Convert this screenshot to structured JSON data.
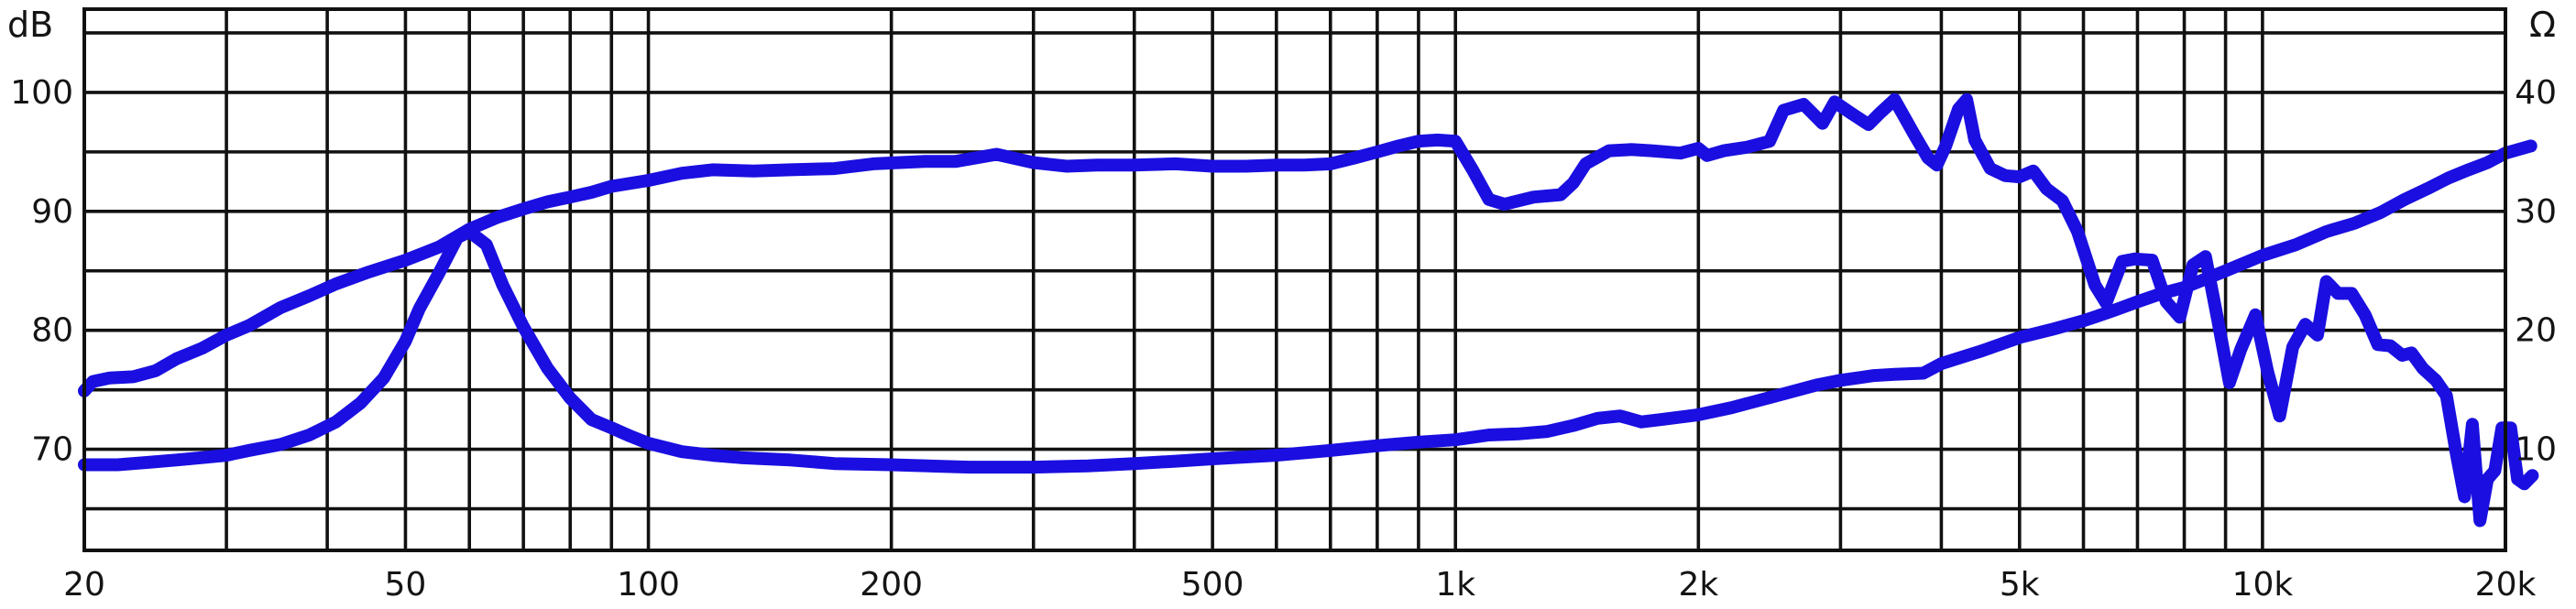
{
  "chart_data": {
    "type": "line",
    "x_scale": "log",
    "xlim": [
      20,
      20000
    ],
    "ylim_left": [
      61.5,
      107
    ],
    "ylim_right": [
      1.5,
      47
    ],
    "y_left_unit": "dB",
    "y_right_unit": "Ω",
    "grid": true,
    "x_ticks": [
      {
        "value": 20,
        "label": "20"
      },
      {
        "value": 50,
        "label": "50"
      },
      {
        "value": 100,
        "label": "100"
      },
      {
        "value": 200,
        "label": "200"
      },
      {
        "value": 500,
        "label": "500"
      },
      {
        "value": 1000,
        "label": "1k"
      },
      {
        "value": 2000,
        "label": "2k"
      },
      {
        "value": 5000,
        "label": "5k"
      },
      {
        "value": 10000,
        "label": "10k"
      },
      {
        "value": 20000,
        "label": "20k"
      }
    ],
    "y_left_ticks": [
      {
        "value": 100,
        "label": "100"
      },
      {
        "value": 90,
        "label": "90"
      },
      {
        "value": 80,
        "label": "80"
      },
      {
        "value": 70,
        "label": "70"
      }
    ],
    "y_right_ticks": [
      {
        "value": 40,
        "label": "40"
      },
      {
        "value": 30,
        "label": "30"
      },
      {
        "value": 20,
        "label": "20"
      },
      {
        "value": 10,
        "label": "10"
      }
    ],
    "series": [
      {
        "axis": "left",
        "color": "#1a0fe0",
        "points": [
          [
            20,
            74.9
          ],
          [
            20.5,
            75.7
          ],
          [
            21.5,
            76
          ],
          [
            23,
            76.1
          ],
          [
            24.5,
            76.6
          ],
          [
            26,
            77.6
          ],
          [
            28,
            78.5
          ],
          [
            30,
            79.6
          ],
          [
            32,
            80.4
          ],
          [
            35,
            81.9
          ],
          [
            38,
            82.9
          ],
          [
            41,
            83.9
          ],
          [
            45,
            84.9
          ],
          [
            50,
            85.9
          ],
          [
            55,
            87
          ],
          [
            60,
            88.5
          ],
          [
            65,
            89.5
          ],
          [
            70,
            90.2
          ],
          [
            75,
            90.8
          ],
          [
            80,
            91.2
          ],
          [
            85,
            91.6
          ],
          [
            90,
            92.1
          ],
          [
            100,
            92.6
          ],
          [
            110,
            93.2
          ],
          [
            120,
            93.5
          ],
          [
            135,
            93.4
          ],
          [
            150,
            93.5
          ],
          [
            170,
            93.6
          ],
          [
            190,
            94
          ],
          [
            220,
            94.2
          ],
          [
            240,
            94.2
          ],
          [
            270,
            94.8
          ],
          [
            300,
            94.1
          ],
          [
            330,
            93.8
          ],
          [
            360,
            93.9
          ],
          [
            400,
            93.9
          ],
          [
            450,
            94
          ],
          [
            500,
            93.8
          ],
          [
            550,
            93.8
          ],
          [
            600,
            93.9
          ],
          [
            650,
            93.9
          ],
          [
            700,
            94
          ],
          [
            750,
            94.5
          ],
          [
            800,
            95
          ],
          [
            850,
            95.5
          ],
          [
            900,
            95.9
          ],
          [
            950,
            96
          ],
          [
            1000,
            95.9
          ],
          [
            1050,
            93.5
          ],
          [
            1100,
            91
          ],
          [
            1150,
            90.6
          ],
          [
            1250,
            91.2
          ],
          [
            1350,
            91.4
          ],
          [
            1400,
            92.4
          ],
          [
            1450,
            94
          ],
          [
            1550,
            95.1
          ],
          [
            1650,
            95.2
          ],
          [
            1750,
            95.1
          ],
          [
            1900,
            94.9
          ],
          [
            2000,
            95.3
          ],
          [
            2050,
            94.7
          ],
          [
            2150,
            95.1
          ],
          [
            2300,
            95.4
          ],
          [
            2450,
            95.9
          ],
          [
            2550,
            98.5
          ],
          [
            2700,
            99
          ],
          [
            2850,
            97.4
          ],
          [
            2950,
            99.2
          ],
          [
            3100,
            98.2
          ],
          [
            3250,
            97.3
          ],
          [
            3350,
            98.2
          ],
          [
            3500,
            99.4
          ],
          [
            3700,
            96.5
          ],
          [
            3850,
            94.5
          ],
          [
            3950,
            93.9
          ],
          [
            4050,
            95.5
          ],
          [
            4200,
            98.6
          ],
          [
            4300,
            99.4
          ],
          [
            4400,
            96
          ],
          [
            4600,
            93.6
          ],
          [
            4800,
            93
          ],
          [
            5000,
            92.9
          ],
          [
            5200,
            93.4
          ],
          [
            5400,
            91.9
          ],
          [
            5650,
            90.9
          ],
          [
            5900,
            88.3
          ],
          [
            6200,
            83.8
          ],
          [
            6400,
            82.3
          ],
          [
            6700,
            85.8
          ],
          [
            6950,
            86
          ],
          [
            7300,
            85.9
          ],
          [
            7600,
            82.4
          ],
          [
            7900,
            81.1
          ],
          [
            8200,
            85.5
          ],
          [
            8500,
            86.2
          ],
          [
            8800,
            80.9
          ],
          [
            9100,
            75.6
          ],
          [
            9400,
            78.4
          ],
          [
            9800,
            81.3
          ],
          [
            10150,
            76.5
          ],
          [
            10500,
            72.8
          ],
          [
            10900,
            78.6
          ],
          [
            11300,
            80.5
          ],
          [
            11700,
            79.6
          ],
          [
            12000,
            84.1
          ],
          [
            12400,
            83.1
          ],
          [
            12900,
            83.1
          ],
          [
            13400,
            81.3
          ],
          [
            13900,
            78.8
          ],
          [
            14400,
            78.7
          ],
          [
            14900,
            77.9
          ],
          [
            15300,
            78.1
          ],
          [
            15800,
            76.8
          ],
          [
            16400,
            75.8
          ],
          [
            16900,
            74.5
          ],
          [
            17400,
            69.5
          ],
          [
            17800,
            66
          ],
          [
            18200,
            72.1
          ],
          [
            18600,
            64
          ],
          [
            19000,
            67.5
          ],
          [
            19400,
            68.2
          ],
          [
            19800,
            71.8
          ],
          [
            20300,
            71.8
          ],
          [
            20700,
            67.5
          ],
          [
            21100,
            67.1
          ],
          [
            21600,
            67.8
          ]
        ]
      },
      {
        "axis": "right",
        "color": "#1a0fe0",
        "points": [
          [
            20,
            8.7
          ],
          [
            22,
            8.7
          ],
          [
            24,
            8.9
          ],
          [
            26,
            9.1
          ],
          [
            28,
            9.3
          ],
          [
            30,
            9.5
          ],
          [
            32,
            9.9
          ],
          [
            35,
            10.4
          ],
          [
            38,
            11.2
          ],
          [
            41,
            12.3
          ],
          [
            44,
            13.9
          ],
          [
            47,
            16
          ],
          [
            50,
            19.1
          ],
          [
            52,
            21.8
          ],
          [
            55,
            24.8
          ],
          [
            58,
            27.8
          ],
          [
            60,
            28.3
          ],
          [
            63,
            27.2
          ],
          [
            66,
            23.8
          ],
          [
            70,
            20.3
          ],
          [
            75,
            16.8
          ],
          [
            80,
            14.3
          ],
          [
            85,
            12.5
          ],
          [
            90,
            11.8
          ],
          [
            95,
            11.1
          ],
          [
            100,
            10.5
          ],
          [
            110,
            9.8
          ],
          [
            120,
            9.5
          ],
          [
            130,
            9.3
          ],
          [
            150,
            9.1
          ],
          [
            170,
            8.8
          ],
          [
            200,
            8.7
          ],
          [
            250,
            8.5
          ],
          [
            300,
            8.5
          ],
          [
            350,
            8.6
          ],
          [
            400,
            8.8
          ],
          [
            450,
            9
          ],
          [
            500,
            9.2
          ],
          [
            600,
            9.5
          ],
          [
            700,
            9.9
          ],
          [
            800,
            10.3
          ],
          [
            900,
            10.6
          ],
          [
            1000,
            10.8
          ],
          [
            1100,
            11.2
          ],
          [
            1200,
            11.3
          ],
          [
            1300,
            11.5
          ],
          [
            1400,
            12
          ],
          [
            1500,
            12.6
          ],
          [
            1600,
            12.8
          ],
          [
            1700,
            12.3
          ],
          [
            1800,
            12.5
          ],
          [
            2000,
            12.9
          ],
          [
            2200,
            13.5
          ],
          [
            2500,
            14.5
          ],
          [
            2800,
            15.4
          ],
          [
            3000,
            15.8
          ],
          [
            3300,
            16.2
          ],
          [
            3500,
            16.3
          ],
          [
            3800,
            16.4
          ],
          [
            4000,
            17.2
          ],
          [
            4500,
            18.3
          ],
          [
            5000,
            19.4
          ],
          [
            5500,
            20.1
          ],
          [
            6000,
            20.8
          ],
          [
            6500,
            21.6
          ],
          [
            7000,
            22.4
          ],
          [
            7500,
            23.1
          ],
          [
            8000,
            23.6
          ],
          [
            9000,
            25
          ],
          [
            10000,
            26.3
          ],
          [
            11000,
            27.2
          ],
          [
            12000,
            28.3
          ],
          [
            13000,
            29
          ],
          [
            14000,
            29.9
          ],
          [
            15000,
            31
          ],
          [
            16000,
            31.9
          ],
          [
            17000,
            32.8
          ],
          [
            18000,
            33.5
          ],
          [
            19000,
            34.1
          ],
          [
            20000,
            34.9
          ],
          [
            21500,
            35.5
          ]
        ]
      }
    ]
  }
}
